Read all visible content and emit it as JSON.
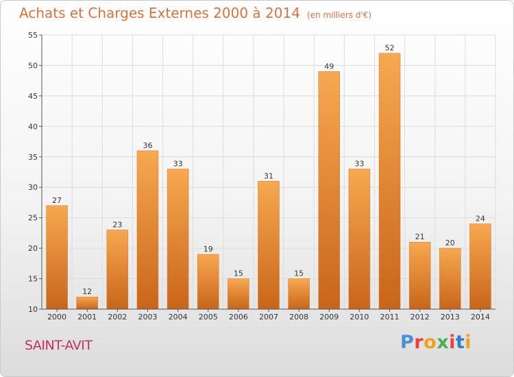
{
  "title": "Achats et Charges Externes 2000 à 2014",
  "unit": "(en milliers d'€)",
  "city": "SAINT-AVIT",
  "logo": {
    "text": "Proxiti",
    "letter_colors": [
      "#4a8fd6",
      "#e8403a",
      "#f0a020",
      "#4cae4c",
      "#e8403a",
      "#2f7fc8",
      "#f0a020"
    ]
  },
  "colors": {
    "bar_top": "#f7a850",
    "bar_bottom": "#c8651a",
    "bar_edge": "#d07a2a",
    "grid": "#dcdcdc",
    "axis": "#555555",
    "text": "#333333"
  },
  "chart_data": {
    "type": "bar",
    "title": "Achats et Charges Externes 2000 à 2014",
    "xlabel": "",
    "ylabel": "",
    "categories": [
      "2000",
      "2001",
      "2002",
      "2003",
      "2004",
      "2005",
      "2006",
      "2007",
      "2008",
      "2009",
      "2010",
      "2011",
      "2012",
      "2013",
      "2014"
    ],
    "values": [
      27,
      12,
      23,
      36,
      33,
      19,
      15,
      31,
      15,
      49,
      33,
      52,
      21,
      20,
      24
    ],
    "ylim": [
      10,
      55
    ],
    "yticks": [
      10,
      15,
      20,
      25,
      30,
      35,
      40,
      45,
      50,
      55
    ],
    "grid": true
  }
}
